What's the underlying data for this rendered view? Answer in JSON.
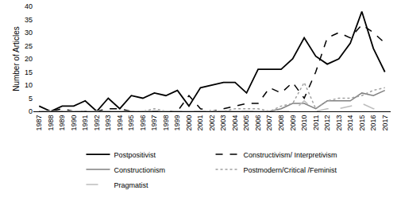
{
  "chart_data": {
    "type": "line",
    "y_label": "Number of Articles",
    "categories": [
      "1987",
      "1988",
      "1989",
      "1990",
      "1991",
      "1992",
      "1993",
      "1994",
      "1995",
      "1996",
      "1997",
      "1998",
      "1999",
      "2000",
      "2001",
      "2002",
      "2003",
      "2004",
      "2005",
      "2006",
      "2007",
      "2008",
      "2009",
      "2010",
      "2011",
      "2012",
      "2013",
      "2014",
      "2015",
      "2016",
      "2017"
    ],
    "series": [
      {
        "name": "Postpositivist",
        "color": "#000000",
        "line_style": "solid",
        "values": [
          2,
          0,
          2,
          2,
          4,
          0,
          5,
          1,
          6,
          5,
          7,
          6,
          8,
          2,
          9,
          10,
          11,
          11,
          7,
          16,
          16,
          16,
          20,
          28,
          21,
          18,
          20,
          26,
          38,
          24,
          15
        ]
      },
      {
        "name": "Constructivism/ Interpretivism",
        "color": "#000000",
        "line_style": "dash",
        "values": [
          0,
          0,
          1,
          0,
          0,
          0,
          1,
          1,
          0,
          0,
          0,
          0,
          0,
          6,
          1,
          0,
          1,
          2,
          3,
          3,
          9,
          7,
          11,
          5,
          15,
          28,
          30,
          28,
          33,
          30,
          26
        ]
      },
      {
        "name": "Constructionism",
        "color": "#808080",
        "line_style": "solid",
        "values": [
          0,
          0,
          0,
          0,
          0,
          0,
          0,
          0,
          0,
          0,
          0,
          0,
          0,
          0,
          0,
          0,
          0,
          0,
          0,
          0,
          0,
          1,
          3,
          3,
          1,
          4,
          4,
          4,
          7,
          6,
          8
        ]
      },
      {
        "name": "Postmodern/Critical /Feminist",
        "color": "#a0a0a0",
        "line_style": "dot",
        "values": [
          0,
          0,
          0,
          0,
          0,
          0,
          0,
          0,
          0,
          0,
          1,
          0,
          0,
          0,
          0,
          0,
          0,
          1,
          1,
          1,
          0,
          2,
          3,
          11,
          1,
          4,
          5,
          5,
          6,
          8,
          9
        ]
      },
      {
        "name": "Pragmatist",
        "color": "#bdbdbd",
        "line_style": "longdash",
        "values": [
          0,
          0,
          0,
          0,
          0,
          0,
          0,
          0,
          0,
          0,
          0,
          0,
          0,
          0,
          0,
          0,
          0,
          0,
          0,
          0,
          0,
          0,
          0,
          4,
          0,
          1,
          1,
          2,
          3,
          1,
          2
        ]
      }
    ],
    "ylim": [
      0,
      40
    ],
    "yticks": [
      0,
      5,
      10,
      15,
      20,
      25,
      30,
      35,
      40
    ],
    "grid": false,
    "legend": "bottom"
  }
}
